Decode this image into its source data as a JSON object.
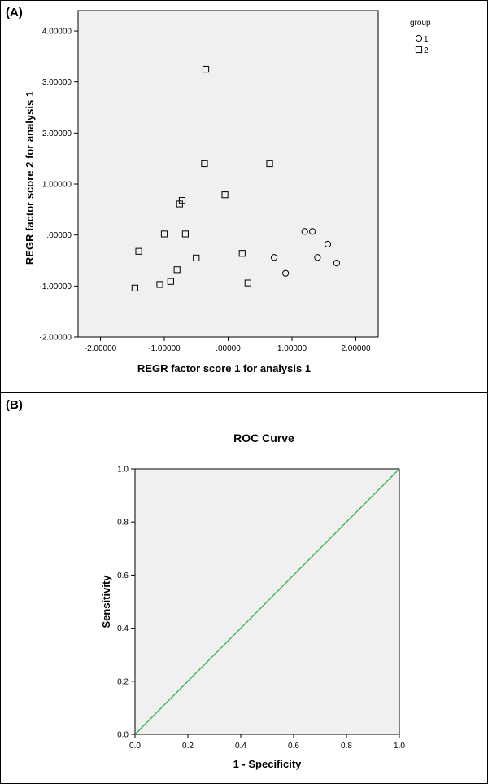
{
  "chart_data": [
    {
      "panel_label": "(A)",
      "type": "scatter",
      "title": "",
      "xlabel": "REGR factor score   1 for analysis 1",
      "ylabel": "REGR factor score   2 for analysis 1",
      "xlim": [
        -2.35,
        2.35
      ],
      "ylim": [
        -2.0,
        4.4
      ],
      "x_ticks": [
        -2,
        -1,
        0,
        1,
        2
      ],
      "x_tick_labels": [
        "-2.00000",
        "-1.00000",
        ".00000",
        "1.00000",
        "2.00000"
      ],
      "y_ticks": [
        -2,
        -1,
        0,
        1,
        2,
        3,
        4
      ],
      "y_tick_labels": [
        "-2.00000",
        "-1.00000",
        ".00000",
        "1.00000",
        "2.00000",
        "3.00000",
        "4.00000"
      ],
      "grid": false,
      "legend_title": "group",
      "legend_placement": "right",
      "series": [
        {
          "name": "1",
          "marker": "circle",
          "points": [
            [
              1.2,
              0.07
            ],
            [
              1.32,
              0.07
            ],
            [
              1.56,
              -0.18
            ],
            [
              0.72,
              -0.44
            ],
            [
              1.4,
              -0.44
            ],
            [
              1.7,
              -0.55
            ],
            [
              0.9,
              -0.75
            ]
          ]
        },
        {
          "name": "2",
          "marker": "square",
          "points": [
            [
              -0.35,
              3.25
            ],
            [
              -0.37,
              1.4
            ],
            [
              0.65,
              1.4
            ],
            [
              -0.05,
              0.79
            ],
            [
              -0.72,
              0.68
            ],
            [
              -0.76,
              0.61
            ],
            [
              -1.0,
              0.02
            ],
            [
              -0.67,
              0.02
            ],
            [
              -1.4,
              -0.32
            ],
            [
              0.22,
              -0.36
            ],
            [
              -0.5,
              -0.45
            ],
            [
              -0.8,
              -0.68
            ],
            [
              -0.9,
              -0.91
            ],
            [
              0.31,
              -0.94
            ],
            [
              -1.07,
              -0.97
            ],
            [
              -1.46,
              -1.04
            ]
          ]
        }
      ]
    },
    {
      "panel_label": "(B)",
      "type": "line",
      "title": "ROC Curve",
      "xlabel": "1 - Specificity",
      "ylabel": "Sensitivity",
      "xlim": [
        0,
        1
      ],
      "ylim": [
        0,
        1
      ],
      "x_ticks": [
        0,
        0.2,
        0.4,
        0.6,
        0.8,
        1.0
      ],
      "x_tick_labels": [
        "0.0",
        "0.2",
        "0.4",
        "0.6",
        "0.8",
        "1.0"
      ],
      "y_ticks": [
        0,
        0.2,
        0.4,
        0.6,
        0.8,
        1.0
      ],
      "y_tick_labels": [
        "0.0",
        "0.2",
        "0.4",
        "0.6",
        "0.8",
        "1.0"
      ],
      "grid": false,
      "series": [
        {
          "color": "#2fb34a",
          "x": [
            0,
            1
          ],
          "y": [
            0,
            1
          ]
        }
      ]
    }
  ]
}
